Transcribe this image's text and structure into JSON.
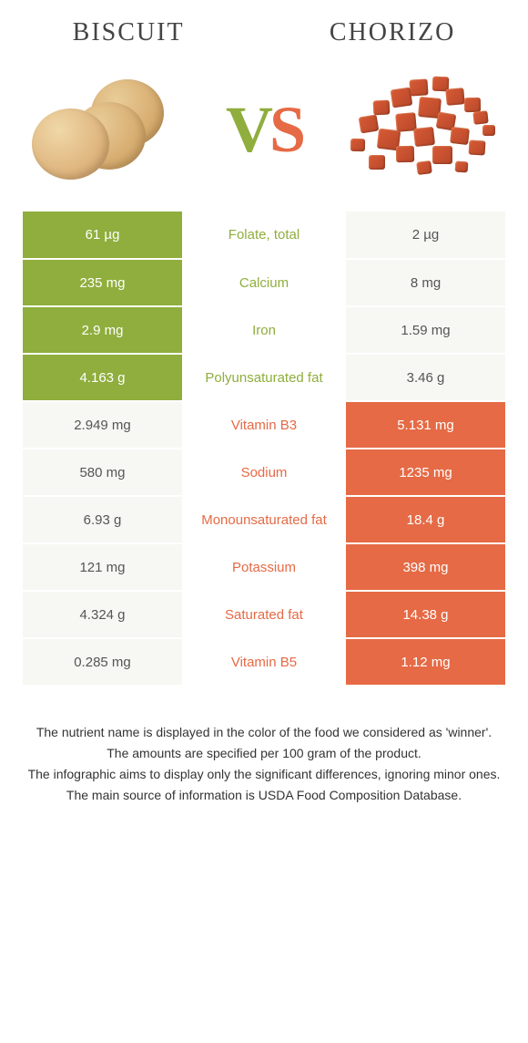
{
  "header": {
    "left_title": "BISCUIT",
    "right_title": "CHORIZO",
    "vs_v": "V",
    "vs_s": "S"
  },
  "colors": {
    "green": "#8fae3d",
    "orange": "#e56a45",
    "light": "#f7f7f4",
    "white": "#ffffff"
  },
  "rows": [
    {
      "left": "61 µg",
      "label": "Folate, total",
      "right": "2 µg",
      "winner": "left"
    },
    {
      "left": "235 mg",
      "label": "Calcium",
      "right": "8 mg",
      "winner": "left"
    },
    {
      "left": "2.9 mg",
      "label": "Iron",
      "right": "1.59 mg",
      "winner": "left"
    },
    {
      "left": "4.163 g",
      "label": "Polyunsaturated fat",
      "right": "3.46 g",
      "winner": "left"
    },
    {
      "left": "2.949 mg",
      "label": "Vitamin B3",
      "right": "5.131 mg",
      "winner": "right"
    },
    {
      "left": "580 mg",
      "label": "Sodium",
      "right": "1235 mg",
      "winner": "right"
    },
    {
      "left": "6.93 g",
      "label": "Monounsaturated fat",
      "right": "18.4 g",
      "winner": "right"
    },
    {
      "left": "121 mg",
      "label": "Potassium",
      "right": "398 mg",
      "winner": "right"
    },
    {
      "left": "4.324 g",
      "label": "Saturated fat",
      "right": "14.38 g",
      "winner": "right"
    },
    {
      "left": "0.285 mg",
      "label": "Vitamin B5",
      "right": "1.12 mg",
      "winner": "right"
    }
  ],
  "footer": {
    "line1": "The nutrient name is displayed in the color of the food we considered as 'winner'.",
    "line2": "The amounts are specified per 100 gram of the product.",
    "line3": "The infographic aims to display only the significant differences, ignoring minor ones.",
    "line4": "The main source of information is USDA Food Composition Database."
  },
  "chorizo_cubes": [
    {
      "l": 70,
      "t": 5,
      "w": 20,
      "h": 18
    },
    {
      "l": 95,
      "t": 2,
      "w": 18,
      "h": 16
    },
    {
      "l": 50,
      "t": 15,
      "w": 22,
      "h": 20
    },
    {
      "l": 110,
      "t": 15,
      "w": 20,
      "h": 18
    },
    {
      "l": 30,
      "t": 28,
      "w": 18,
      "h": 16
    },
    {
      "l": 80,
      "t": 25,
      "w": 24,
      "h": 22
    },
    {
      "l": 130,
      "t": 25,
      "w": 18,
      "h": 16
    },
    {
      "l": 15,
      "t": 45,
      "w": 20,
      "h": 18
    },
    {
      "l": 55,
      "t": 42,
      "w": 22,
      "h": 20
    },
    {
      "l": 100,
      "t": 42,
      "w": 20,
      "h": 18
    },
    {
      "l": 140,
      "t": 40,
      "w": 16,
      "h": 14
    },
    {
      "l": 35,
      "t": 60,
      "w": 24,
      "h": 22
    },
    {
      "l": 75,
      "t": 58,
      "w": 22,
      "h": 20
    },
    {
      "l": 115,
      "t": 58,
      "w": 20,
      "h": 18
    },
    {
      "l": 5,
      "t": 70,
      "w": 16,
      "h": 14
    },
    {
      "l": 55,
      "t": 78,
      "w": 20,
      "h": 18
    },
    {
      "l": 95,
      "t": 78,
      "w": 22,
      "h": 20
    },
    {
      "l": 135,
      "t": 72,
      "w": 18,
      "h": 16
    },
    {
      "l": 25,
      "t": 88,
      "w": 18,
      "h": 16
    },
    {
      "l": 78,
      "t": 95,
      "w": 16,
      "h": 14
    },
    {
      "l": 150,
      "t": 55,
      "w": 14,
      "h": 12
    },
    {
      "l": 120,
      "t": 95,
      "w": 14,
      "h": 12
    }
  ]
}
